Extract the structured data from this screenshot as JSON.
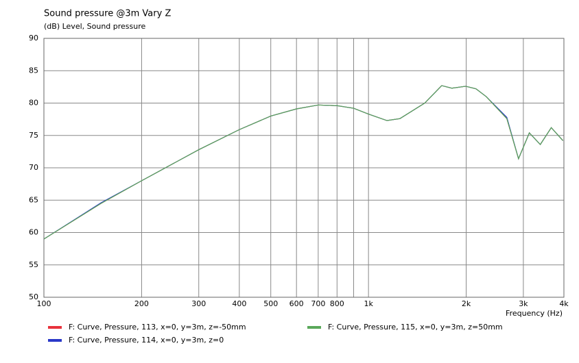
{
  "chart_data": {
    "type": "line",
    "title": "Sound pressure @3m Vary Z",
    "subtitle": "(dB)  Level, Sound pressure",
    "x_label": "Frequency  (Hz)",
    "x_scale": "log",
    "grid": true,
    "xlim": [
      100,
      4000
    ],
    "ylim": [
      50,
      90
    ],
    "xticks": [
      100,
      200,
      300,
      400,
      500,
      600,
      700,
      800,
      {
        "value": 1000,
        "label": "1k"
      },
      {
        "value": 2000,
        "label": "2k"
      },
      {
        "value": 3000,
        "label": "3k"
      },
      {
        "value": 4000,
        "label": "4k"
      }
    ],
    "minor_xticks": [
      900
    ],
    "yticks": [
      50,
      55,
      60,
      65,
      70,
      75,
      80,
      85,
      90
    ],
    "x": [
      100,
      150,
      200,
      300,
      400,
      450,
      500,
      600,
      700,
      800,
      900,
      1000,
      1140,
      1250,
      1490,
      1681,
      1807,
      1993,
      2144,
      2305,
      2668,
      2899,
      3130,
      3383,
      3657,
      3973
    ],
    "series": [
      {
        "name": "F: Curve, Pressure, 113, x=0, y=3m, z=-50mm",
        "color": "#e8323c",
        "values": [
          59.0,
          64.5,
          68.0,
          72.8,
          75.9,
          77.0,
          78.0,
          79.1,
          79.7,
          79.6,
          79.2,
          78.3,
          77.3,
          77.6,
          80.0,
          82.7,
          82.3,
          82.6,
          82.2,
          81.0,
          77.6,
          71.4,
          75.4,
          73.6,
          76.2,
          74.2
        ]
      },
      {
        "name": "F: Curve, Pressure, 114, x=0, y=3m, z=0",
        "color": "#2a38c8",
        "values": [
          59.0,
          64.6,
          68.0,
          72.8,
          75.9,
          77.0,
          78.0,
          79.1,
          79.7,
          79.6,
          79.2,
          78.3,
          77.3,
          77.6,
          80.0,
          82.7,
          82.3,
          82.6,
          82.2,
          81.0,
          77.8,
          71.4,
          75.4,
          73.6,
          76.2,
          74.2
        ]
      },
      {
        "name": "F: Curve, Pressure, 115, x=0, y=3m, z=50mm",
        "color": "#5aa85a",
        "values": [
          59.0,
          64.5,
          68.0,
          72.8,
          75.9,
          77.0,
          78.0,
          79.1,
          79.7,
          79.6,
          79.2,
          78.3,
          77.3,
          77.6,
          80.0,
          82.7,
          82.3,
          82.6,
          82.2,
          81.0,
          77.6,
          71.4,
          75.4,
          73.6,
          76.2,
          74.2
        ]
      }
    ]
  }
}
